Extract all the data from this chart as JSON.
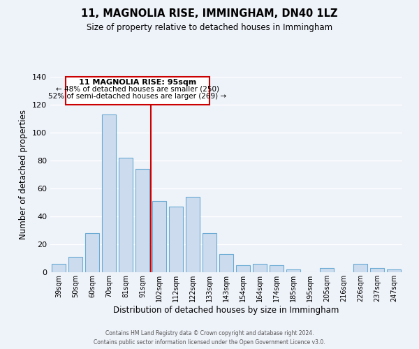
{
  "title": "11, MAGNOLIA RISE, IMMINGHAM, DN40 1LZ",
  "subtitle": "Size of property relative to detached houses in Immingham",
  "xlabel": "Distribution of detached houses by size in Immingham",
  "ylabel": "Number of detached properties",
  "bar_labels": [
    "39sqm",
    "50sqm",
    "60sqm",
    "70sqm",
    "81sqm",
    "91sqm",
    "102sqm",
    "112sqm",
    "122sqm",
    "133sqm",
    "143sqm",
    "154sqm",
    "164sqm",
    "174sqm",
    "185sqm",
    "195sqm",
    "205sqm",
    "216sqm",
    "226sqm",
    "237sqm",
    "247sqm"
  ],
  "bar_values": [
    6,
    11,
    28,
    113,
    82,
    74,
    51,
    47,
    54,
    28,
    13,
    5,
    6,
    5,
    2,
    0,
    3,
    0,
    6,
    3,
    2
  ],
  "bar_color": "#ccdcee",
  "bar_edge_color": "#6aaad4",
  "background_color": "#eef2f9",
  "grid_color": "#ffffff",
  "vline_x": 5.5,
  "vline_color": "#cc0000",
  "annotation_title": "11 MAGNOLIA RISE: 95sqm",
  "annotation_line1": "← 48% of detached houses are smaller (250)",
  "annotation_line2": "52% of semi-detached houses are larger (269) →",
  "annotation_box_color": "#ffffff",
  "annotation_box_edge": "#cc0000",
  "ylim": [
    0,
    140
  ],
  "yticks": [
    0,
    20,
    40,
    60,
    80,
    100,
    120,
    140
  ],
  "footer1": "Contains HM Land Registry data © Crown copyright and database right 2024.",
  "footer2": "Contains public sector information licensed under the Open Government Licence v3.0."
}
